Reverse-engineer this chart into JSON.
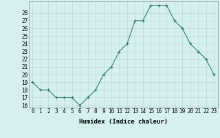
{
  "x": [
    0,
    1,
    2,
    3,
    4,
    5,
    6,
    7,
    8,
    9,
    10,
    11,
    12,
    13,
    14,
    15,
    16,
    17,
    18,
    19,
    20,
    21,
    22,
    23
  ],
  "y": [
    19,
    18,
    18,
    17,
    17,
    17,
    16,
    17,
    18,
    20,
    21,
    23,
    24,
    27,
    27,
    29,
    29,
    29,
    27,
    26,
    24,
    23,
    22,
    20
  ],
  "line_color": "#2e7d6e",
  "marker": "+",
  "background_color": "#d6f0ef",
  "grid_color": "#b8dbd8",
  "xlabel": "Humidex (Indice chaleur)",
  "ylim_min": 16,
  "ylim_max": 29,
  "yticks": [
    16,
    17,
    18,
    19,
    20,
    21,
    22,
    23,
    24,
    25,
    26,
    27,
    28
  ],
  "xtick_labels": [
    "0",
    "1",
    "2",
    "3",
    "4",
    "5",
    "6",
    "7",
    "8",
    "9",
    "10",
    "11",
    "12",
    "13",
    "14",
    "15",
    "16",
    "17",
    "18",
    "19",
    "20",
    "21",
    "22",
    "23"
  ],
  "tick_fontsize": 5.5,
  "xlabel_fontsize": 6.5
}
